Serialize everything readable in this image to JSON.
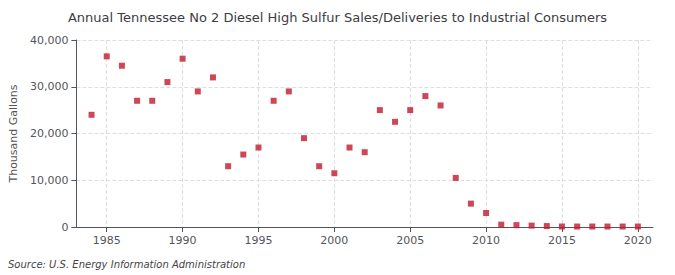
{
  "chart_data": {
    "type": "scatter",
    "title": "Annual Tennessee No 2 Diesel High Sulfur Sales/Deliveries to Industrial Consumers",
    "ylabel": "Thousand Gallons",
    "annotation": "Source: U.S. Energy Information Administration",
    "x": [
      1984,
      1985,
      1986,
      1987,
      1988,
      1989,
      1990,
      1991,
      1992,
      1993,
      1994,
      1995,
      1996,
      1997,
      1998,
      1999,
      2000,
      2001,
      2002,
      2003,
      2004,
      2005,
      2006,
      2007,
      2008,
      2009,
      2010,
      2011,
      2012,
      2013,
      2014,
      2015,
      2016,
      2017,
      2018,
      2019,
      2020
    ],
    "values": [
      24000,
      36500,
      34500,
      27000,
      27000,
      31000,
      36000,
      29000,
      32000,
      13000,
      15500,
      17000,
      27000,
      29000,
      19000,
      13000,
      11500,
      17000,
      16000,
      25000,
      22500,
      25000,
      28000,
      26000,
      10500,
      5000,
      3000,
      500,
      400,
      300,
      200,
      100,
      100,
      100,
      100,
      100,
      100
    ],
    "color": "#c0192c",
    "marker": "square",
    "xlim": [
      1983,
      2021
    ],
    "ylim": [
      0,
      40000
    ],
    "xticks": [
      1985,
      1990,
      1995,
      2000,
      2005,
      2010,
      2015,
      2020
    ],
    "yticks": [
      0,
      {
        "value": 10000,
        "label": "10,000"
      },
      {
        "value": 20000,
        "label": "20,000"
      },
      {
        "value": 30000,
        "label": "30,000"
      },
      {
        "value": 40000,
        "label": "40,000"
      }
    ],
    "grid": true
  }
}
